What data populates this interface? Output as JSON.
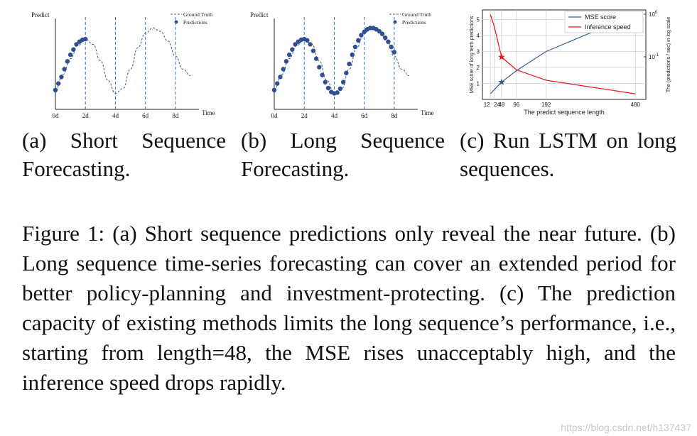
{
  "panels": [
    {
      "id": "a",
      "ylabel": "Predict",
      "xlabel": "Time",
      "legend": [
        "Ground Truth",
        "Predictions"
      ],
      "ticks": [
        "0d",
        "2d",
        "4d",
        "6d",
        "8d"
      ],
      "caption": "(a) Short Sequence Forecasting."
    },
    {
      "id": "b",
      "ylabel": "Predict",
      "xlabel": "Time",
      "legend": [
        "Ground Truth",
        "Predictions"
      ],
      "ticks": [
        "0d",
        "2d",
        "4d",
        "6d",
        "8d"
      ],
      "caption": "(b) Long Sequence Forecasting."
    },
    {
      "id": "c",
      "caption": "(c) Run LSTM on long sequences."
    }
  ],
  "chart_data": [
    {
      "type": "line",
      "ylabel": "Predict",
      "xlabel": "Time",
      "x_ticks": [
        "0d",
        "2d",
        "4d",
        "6d",
        "8d"
      ],
      "series": [
        {
          "name": "Ground Truth",
          "style": "dashed",
          "x": [
            0,
            0.5,
            1,
            1.5,
            2,
            2.5,
            3,
            3.5,
            4,
            4.5,
            5,
            5.5,
            6,
            6.5,
            7,
            7.5,
            8,
            8.5,
            9
          ],
          "y": [
            0.1,
            0.34,
            0.58,
            0.78,
            0.88,
            0.8,
            0.55,
            0.25,
            0.05,
            0.12,
            0.42,
            0.75,
            0.97,
            1.05,
            1.0,
            0.85,
            0.62,
            0.42,
            0.32
          ]
        },
        {
          "name": "Predictions",
          "style": "markers",
          "x": [
            0,
            0.2,
            0.4,
            0.6,
            0.8,
            1.0,
            1.2,
            1.4,
            1.6,
            1.8,
            2.0
          ],
          "y": [
            0.1,
            0.2,
            0.3,
            0.42,
            0.54,
            0.64,
            0.72,
            0.8,
            0.84,
            0.87,
            0.88
          ]
        }
      ]
    },
    {
      "type": "line",
      "ylabel": "Predict",
      "xlabel": "Time",
      "x_ticks": [
        "0d",
        "2d",
        "4d",
        "6d",
        "8d"
      ],
      "series": [
        {
          "name": "Ground Truth",
          "style": "dashed",
          "x": [
            0,
            0.5,
            1,
            1.5,
            2,
            2.5,
            3,
            3.5,
            4,
            4.5,
            5,
            5.5,
            6,
            6.5,
            7,
            7.5,
            8,
            8.5,
            9
          ],
          "y": [
            0.1,
            0.34,
            0.58,
            0.78,
            0.88,
            0.8,
            0.55,
            0.25,
            0.05,
            0.12,
            0.42,
            0.75,
            0.97,
            1.05,
            1.0,
            0.85,
            0.62,
            0.42,
            0.32
          ]
        },
        {
          "name": "Predictions",
          "style": "markers",
          "x": [
            0,
            0.2,
            0.4,
            0.6,
            0.8,
            1.0,
            1.2,
            1.4,
            1.6,
            1.8,
            2.0,
            2.2,
            2.4,
            2.6,
            2.8,
            3.0,
            3.2,
            3.4,
            3.6,
            3.8,
            4.0,
            4.2,
            4.4,
            4.6,
            4.8,
            5.0,
            5.2,
            5.4,
            5.6,
            5.8,
            6.0,
            6.2,
            6.4,
            6.6,
            6.8,
            7.0,
            7.2,
            7.4,
            7.6,
            7.8,
            8.0
          ],
          "y": [
            0.1,
            0.2,
            0.3,
            0.42,
            0.54,
            0.64,
            0.72,
            0.8,
            0.84,
            0.87,
            0.88,
            0.86,
            0.8,
            0.7,
            0.58,
            0.45,
            0.33,
            0.22,
            0.13,
            0.07,
            0.05,
            0.06,
            0.12,
            0.22,
            0.36,
            0.5,
            0.64,
            0.76,
            0.86,
            0.94,
            0.99,
            1.03,
            1.05,
            1.05,
            1.03,
            1.0,
            0.96,
            0.9,
            0.84,
            0.76,
            0.68
          ]
        }
      ]
    },
    {
      "type": "line",
      "xlabel": "The predict sequence length",
      "ylabel": "MSE score of long term predictions",
      "y2label": "The (predictions / sec) in log scale",
      "x_ticks": [
        12,
        24,
        48,
        96,
        192,
        480
      ],
      "y_ticks": [
        1,
        2,
        3,
        4,
        5
      ],
      "y2_ticks_text": [
        "10^0",
        "10^-1"
      ],
      "legend": [
        "MSE score",
        "Inference speed"
      ],
      "series": [
        {
          "name": "MSE score",
          "color": "#3b5b8c",
          "x": [
            12,
            24,
            48,
            96,
            192,
            480
          ],
          "y": [
            0.35,
            0.6,
            1.08,
            1.8,
            3.0,
            5.35
          ]
        },
        {
          "name": "Inference speed",
          "color": "#e8141c",
          "x": [
            12,
            24,
            48,
            96,
            192,
            480
          ],
          "y": [
            5.3,
            4.6,
            2.65,
            1.85,
            1.2,
            0.35
          ]
        }
      ],
      "markers": [
        {
          "series": "MSE score",
          "x": 48,
          "y": 1.08,
          "symbol": "star"
        },
        {
          "series": "Inference speed",
          "x": 48,
          "y": 2.65,
          "symbol": "star"
        }
      ]
    }
  ],
  "caption": "Figure 1: (a) Short sequence predictions only reveal the near future. (b) Long sequence time-series forecasting can cover an extended period for better policy-planning and investment-protecting. (c) The prediction capacity of existing methods limits the long sequence’s performance, i.e., starting from length=48, the MSE rises unacceptably high, and the inference speed drops rapidly.",
  "watermark": "https://blog.csdn.net/h137437"
}
